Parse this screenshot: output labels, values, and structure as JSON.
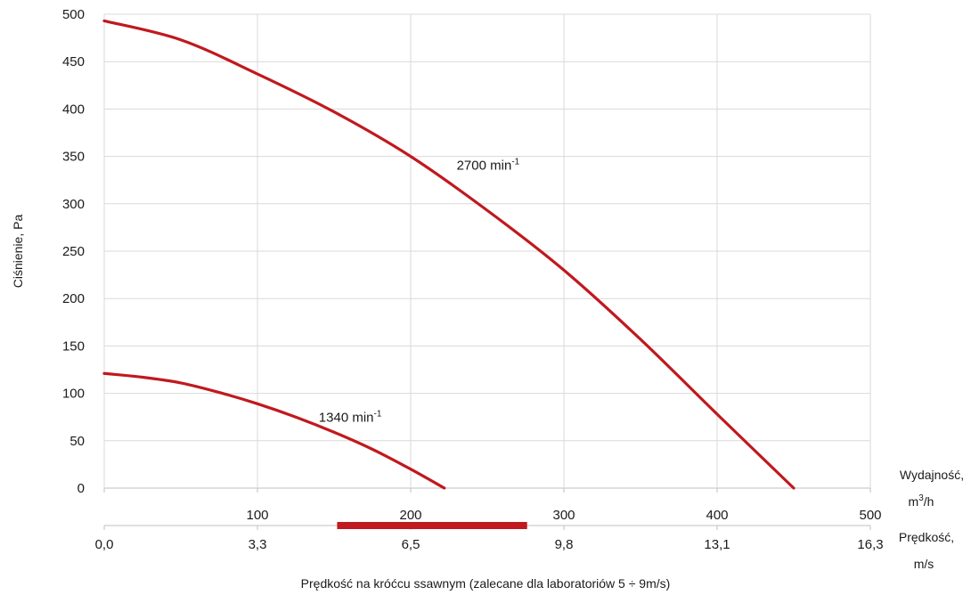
{
  "chart_data": {
    "type": "line",
    "title": "",
    "ylabel": "Ciśnienie, Pa",
    "ylim": [
      0,
      500
    ],
    "yticks": [
      "0",
      "50",
      "100",
      "150",
      "200",
      "250",
      "300",
      "350",
      "400",
      "450",
      "500"
    ],
    "xlim": [
      0,
      500
    ],
    "xticks": [
      "100",
      "200",
      "300",
      "400",
      "500"
    ],
    "x_axis_label_line1": "Wydajność,",
    "x_axis_label_unit": "m",
    "x_axis_label_unit_exp": "3",
    "x_axis_label_unit_rest": "/h",
    "velocity_ticks": [
      "0,0",
      "3,3",
      "6,5",
      "9,8",
      "13,1",
      "16,3"
    ],
    "velocity_label_line1": "Prędkość,",
    "velocity_label_line2": "m/s",
    "recommended_range": [
      152,
      276
    ],
    "recommended_range_color": "#c0191e",
    "xlabel": "Prędkość na króćcu ssawnym (zalecane dla laboratoriów 5 ÷ 9m/s)",
    "series": [
      {
        "name_base": "2700 min",
        "name_exp": "-1",
        "label_at": [
          230,
          336
        ],
        "color": "#c0191e",
        "x": [
          0,
          50,
          100,
          150,
          200,
          250,
          300,
          350,
          400,
          450
        ],
        "y": [
          493,
          473,
          437,
          397,
          350,
          293,
          230,
          157,
          78,
          0
        ]
      },
      {
        "name_base": "1340 min",
        "name_exp": "-1",
        "label_at": [
          140,
          70
        ],
        "color": "#c0191e",
        "x": [
          0,
          25,
          50,
          75,
          100,
          125,
          150,
          175,
          200,
          222
        ],
        "y": [
          121,
          117,
          111,
          101,
          89,
          75,
          59,
          41,
          20,
          0
        ]
      }
    ]
  }
}
